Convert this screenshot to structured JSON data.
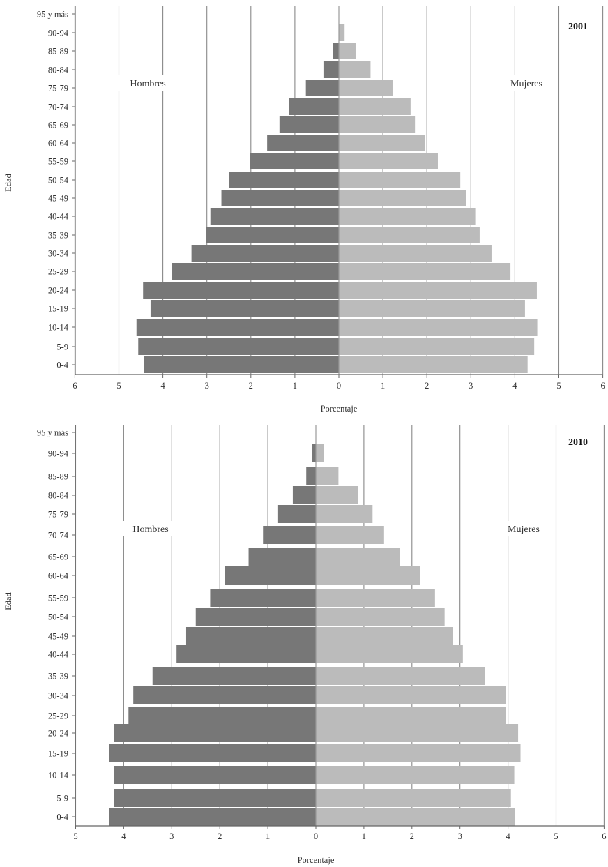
{
  "colors": {
    "hombres": "#777777",
    "mujeres": "#bbbbbb",
    "grid": "#888888",
    "axis": "#666666"
  },
  "chart_data": [
    {
      "type": "bar",
      "title": "2001",
      "xlabel": "Porcentaje",
      "ylabel": "Edad",
      "orientation": "horizontal-population-pyramid",
      "xlim": [
        -6,
        6
      ],
      "x_ticks": [
        "6",
        "5",
        "4",
        "3",
        "2",
        "1",
        "0",
        "1",
        "2",
        "3",
        "4",
        "5",
        "6"
      ],
      "categories": [
        "95 y más",
        "90-94",
        "85-89",
        "80-84",
        "75-79",
        "70-74",
        "65-69",
        "60-64",
        "55-59",
        "50-54",
        "45-49",
        "40-44",
        "35-39",
        "30-34",
        "25-29",
        "20-24",
        "15-19",
        "10-14",
        "5-9",
        "0-4"
      ],
      "grid": "vertical",
      "series": [
        {
          "name": "Hombres",
          "values": [
            0,
            0,
            0.13,
            0.35,
            0.75,
            1.13,
            1.35,
            1.63,
            2.02,
            2.5,
            2.67,
            2.92,
            3.02,
            3.35,
            3.79,
            4.45,
            4.28,
            4.6,
            4.56,
            4.43
          ]
        },
        {
          "name": "Mujeres",
          "values": [
            0,
            0.13,
            0.38,
            0.72,
            1.22,
            1.63,
            1.73,
            1.95,
            2.25,
            2.76,
            2.89,
            3.1,
            3.2,
            3.47,
            3.9,
            4.5,
            4.23,
            4.51,
            4.44,
            4.29
          ]
        }
      ]
    },
    {
      "type": "bar",
      "title": "2010",
      "xlabel": "Porcentaje",
      "ylabel": "Edad",
      "orientation": "horizontal-population-pyramid",
      "xlim": [
        -5,
        6
      ],
      "x_ticks": [
        "5",
        "4",
        "3",
        "2",
        "1",
        "0",
        "1",
        "2",
        "3",
        "4",
        "5",
        "6"
      ],
      "categories": [
        "95 y más",
        "90-94",
        "85-89",
        "80-84",
        "75-79",
        "70-74",
        "65-69",
        "60-64",
        "55-59",
        "50-54",
        "45-49",
        "40-44",
        "35-39",
        "30-34",
        "25-29",
        "20-24",
        "15-19",
        "10-14",
        "5-9",
        "0-4"
      ],
      "grid": "vertical",
      "series": [
        {
          "name": "Hombres",
          "values": [
            0,
            0.08,
            0.2,
            0.48,
            0.8,
            1.1,
            1.4,
            1.9,
            2.2,
            2.5,
            2.7,
            2.9,
            3.4,
            3.8,
            3.9,
            4.2,
            4.3,
            4.2,
            4.2,
            4.3
          ]
        },
        {
          "name": "Mujeres",
          "values": [
            0,
            0.16,
            0.47,
            0.88,
            1.18,
            1.42,
            1.75,
            2.17,
            2.48,
            2.68,
            2.85,
            3.06,
            3.52,
            3.95,
            3.95,
            4.21,
            4.26,
            4.13,
            4.06,
            4.15
          ]
        }
      ]
    }
  ]
}
